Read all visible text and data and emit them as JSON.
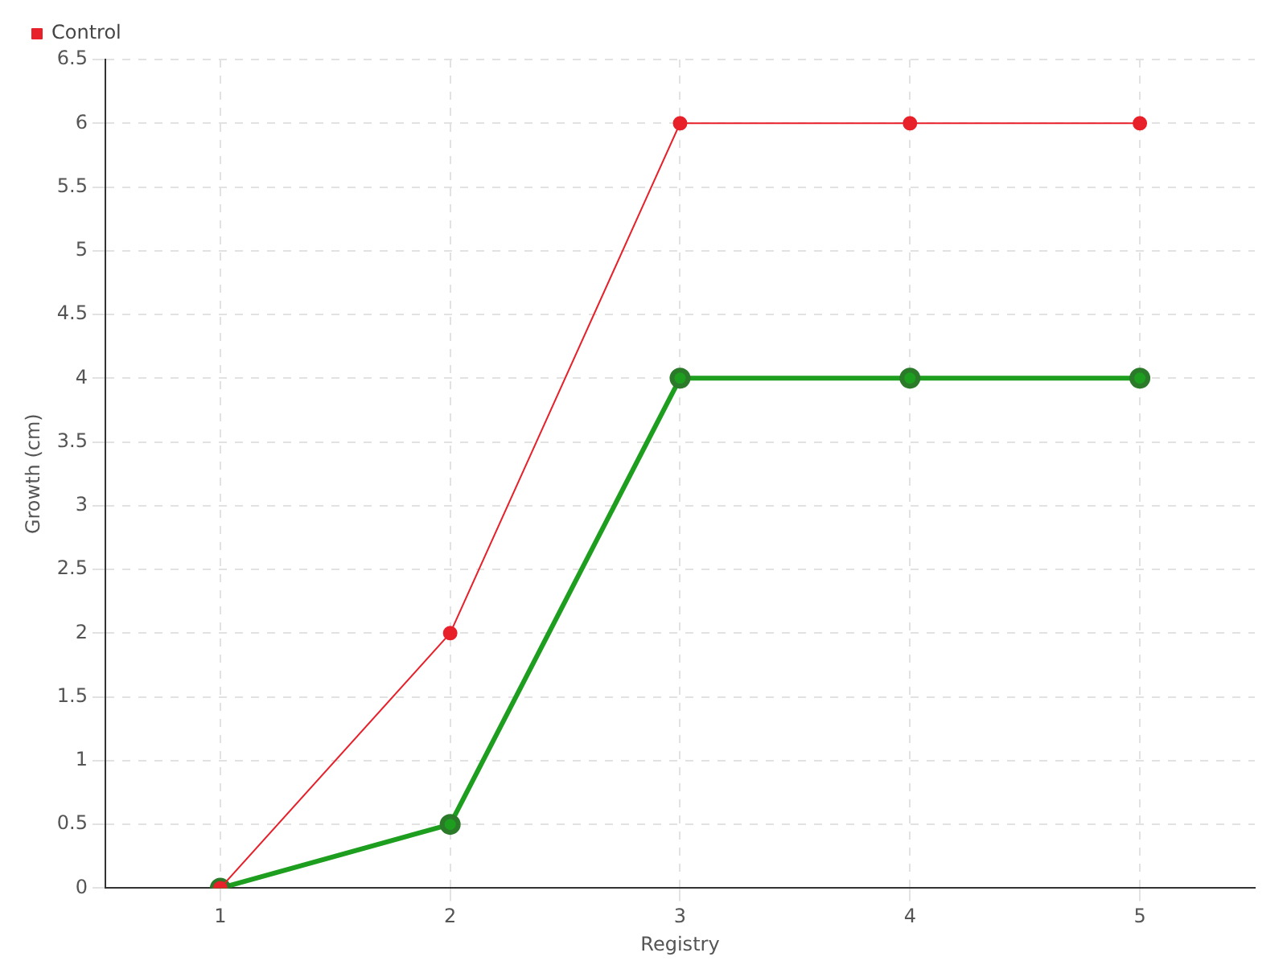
{
  "chart_data": {
    "type": "line",
    "xlabel": "Registry",
    "ylabel": "Growth (cm)",
    "categories": [
      "1",
      "2",
      "3",
      "4",
      "5"
    ],
    "series": [
      {
        "color": "#1e9e1e",
        "values": [
          0,
          0.5,
          4,
          4,
          4
        ]
      },
      {
        "name": "Control",
        "color": "#e8202a",
        "values": [
          0,
          2,
          6,
          6,
          6
        ]
      }
    ],
    "ylim": [
      0,
      6.5
    ],
    "yticks": [
      0,
      0.5,
      1,
      1.5,
      2,
      2.5,
      3,
      3.5,
      4,
      4.5,
      5,
      5.5,
      6,
      6.5
    ],
    "grid": true,
    "legend": "top left",
    "marker": "circle",
    "line_style": "solid"
  }
}
